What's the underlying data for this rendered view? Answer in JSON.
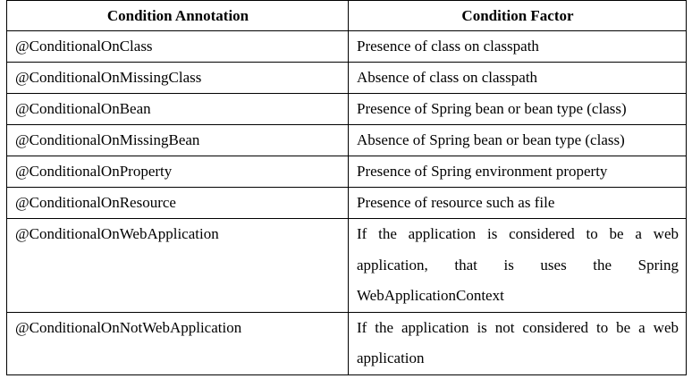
{
  "table": {
    "headers": [
      "Condition Annotation",
      "Condition Factor"
    ],
    "rows": [
      {
        "annotation": "@ConditionalOnClass",
        "factor": "Presence of class on classpath"
      },
      {
        "annotation": "@ConditionalOnMissingClass",
        "factor": "Absence of class on classpath"
      },
      {
        "annotation": "@ConditionalOnBean",
        "factor": "Presence of Spring bean or bean type (class)"
      },
      {
        "annotation": "@ConditionalOnMissingBean",
        "factor": "Absence of Spring bean or bean type (class)"
      },
      {
        "annotation": "@ConditionalOnProperty",
        "factor": "Presence of Spring environment property"
      },
      {
        "annotation": "@ConditionalOnResource",
        "factor": "Presence of resource such as file"
      },
      {
        "annotation": "@ConditionalOnWebApplication",
        "factor": "If the application is considered to be a web application, that is uses the Spring WebApplicationContext"
      },
      {
        "annotation": "@ConditionalOnNotWebApplication",
        "factor": "If the application is not considered to be a web application"
      }
    ]
  }
}
